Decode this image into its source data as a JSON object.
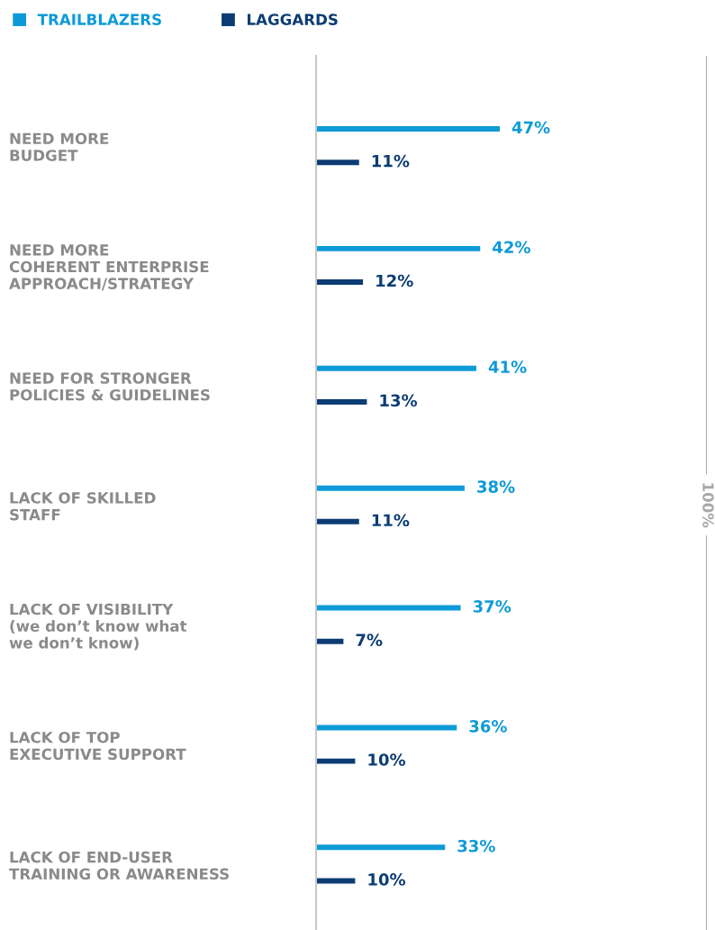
{
  "chart_data": {
    "type": "bar",
    "orientation": "horizontal",
    "categories": [
      "NEED MORE\nBUDGET",
      "NEED MORE\nCOHERENT ENTERPRISE\nAPPROACH/STRATEGY",
      "NEED FOR STRONGER\nPOLICIES & GUIDELINES",
      "LACK OF SKILLED\nSTAFF",
      "LACK OF VISIBILITY\n(we don’t know what\nwe don’t know)",
      "LACK OF TOP\nEXECUTIVE SUPPORT",
      "LACK OF END-USER\nTRAINING OR AWARENESS"
    ],
    "series": [
      {
        "name": "TRAILBLAZERS",
        "color": "#0e9ad7",
        "values": [
          47,
          42,
          41,
          38,
          37,
          36,
          33
        ],
        "value_labels": [
          "47%",
          "42%",
          "41%",
          "38%",
          "37%",
          "36%",
          "33%"
        ]
      },
      {
        "name": "LAGGARDS",
        "color": "#0c3c73",
        "values": [
          11,
          12,
          13,
          11,
          7,
          10,
          10
        ],
        "value_labels": [
          "11%",
          "12%",
          "13%",
          "11%",
          "7%",
          "10%",
          "10%"
        ]
      }
    ],
    "xlim": [
      0,
      100
    ],
    "ref_lines": [
      {
        "axis": "x",
        "value": 100,
        "label": "100%",
        "color": "#a8a8a8"
      }
    ],
    "legend": "top left",
    "tick_labels": "y",
    "grid": false
  }
}
